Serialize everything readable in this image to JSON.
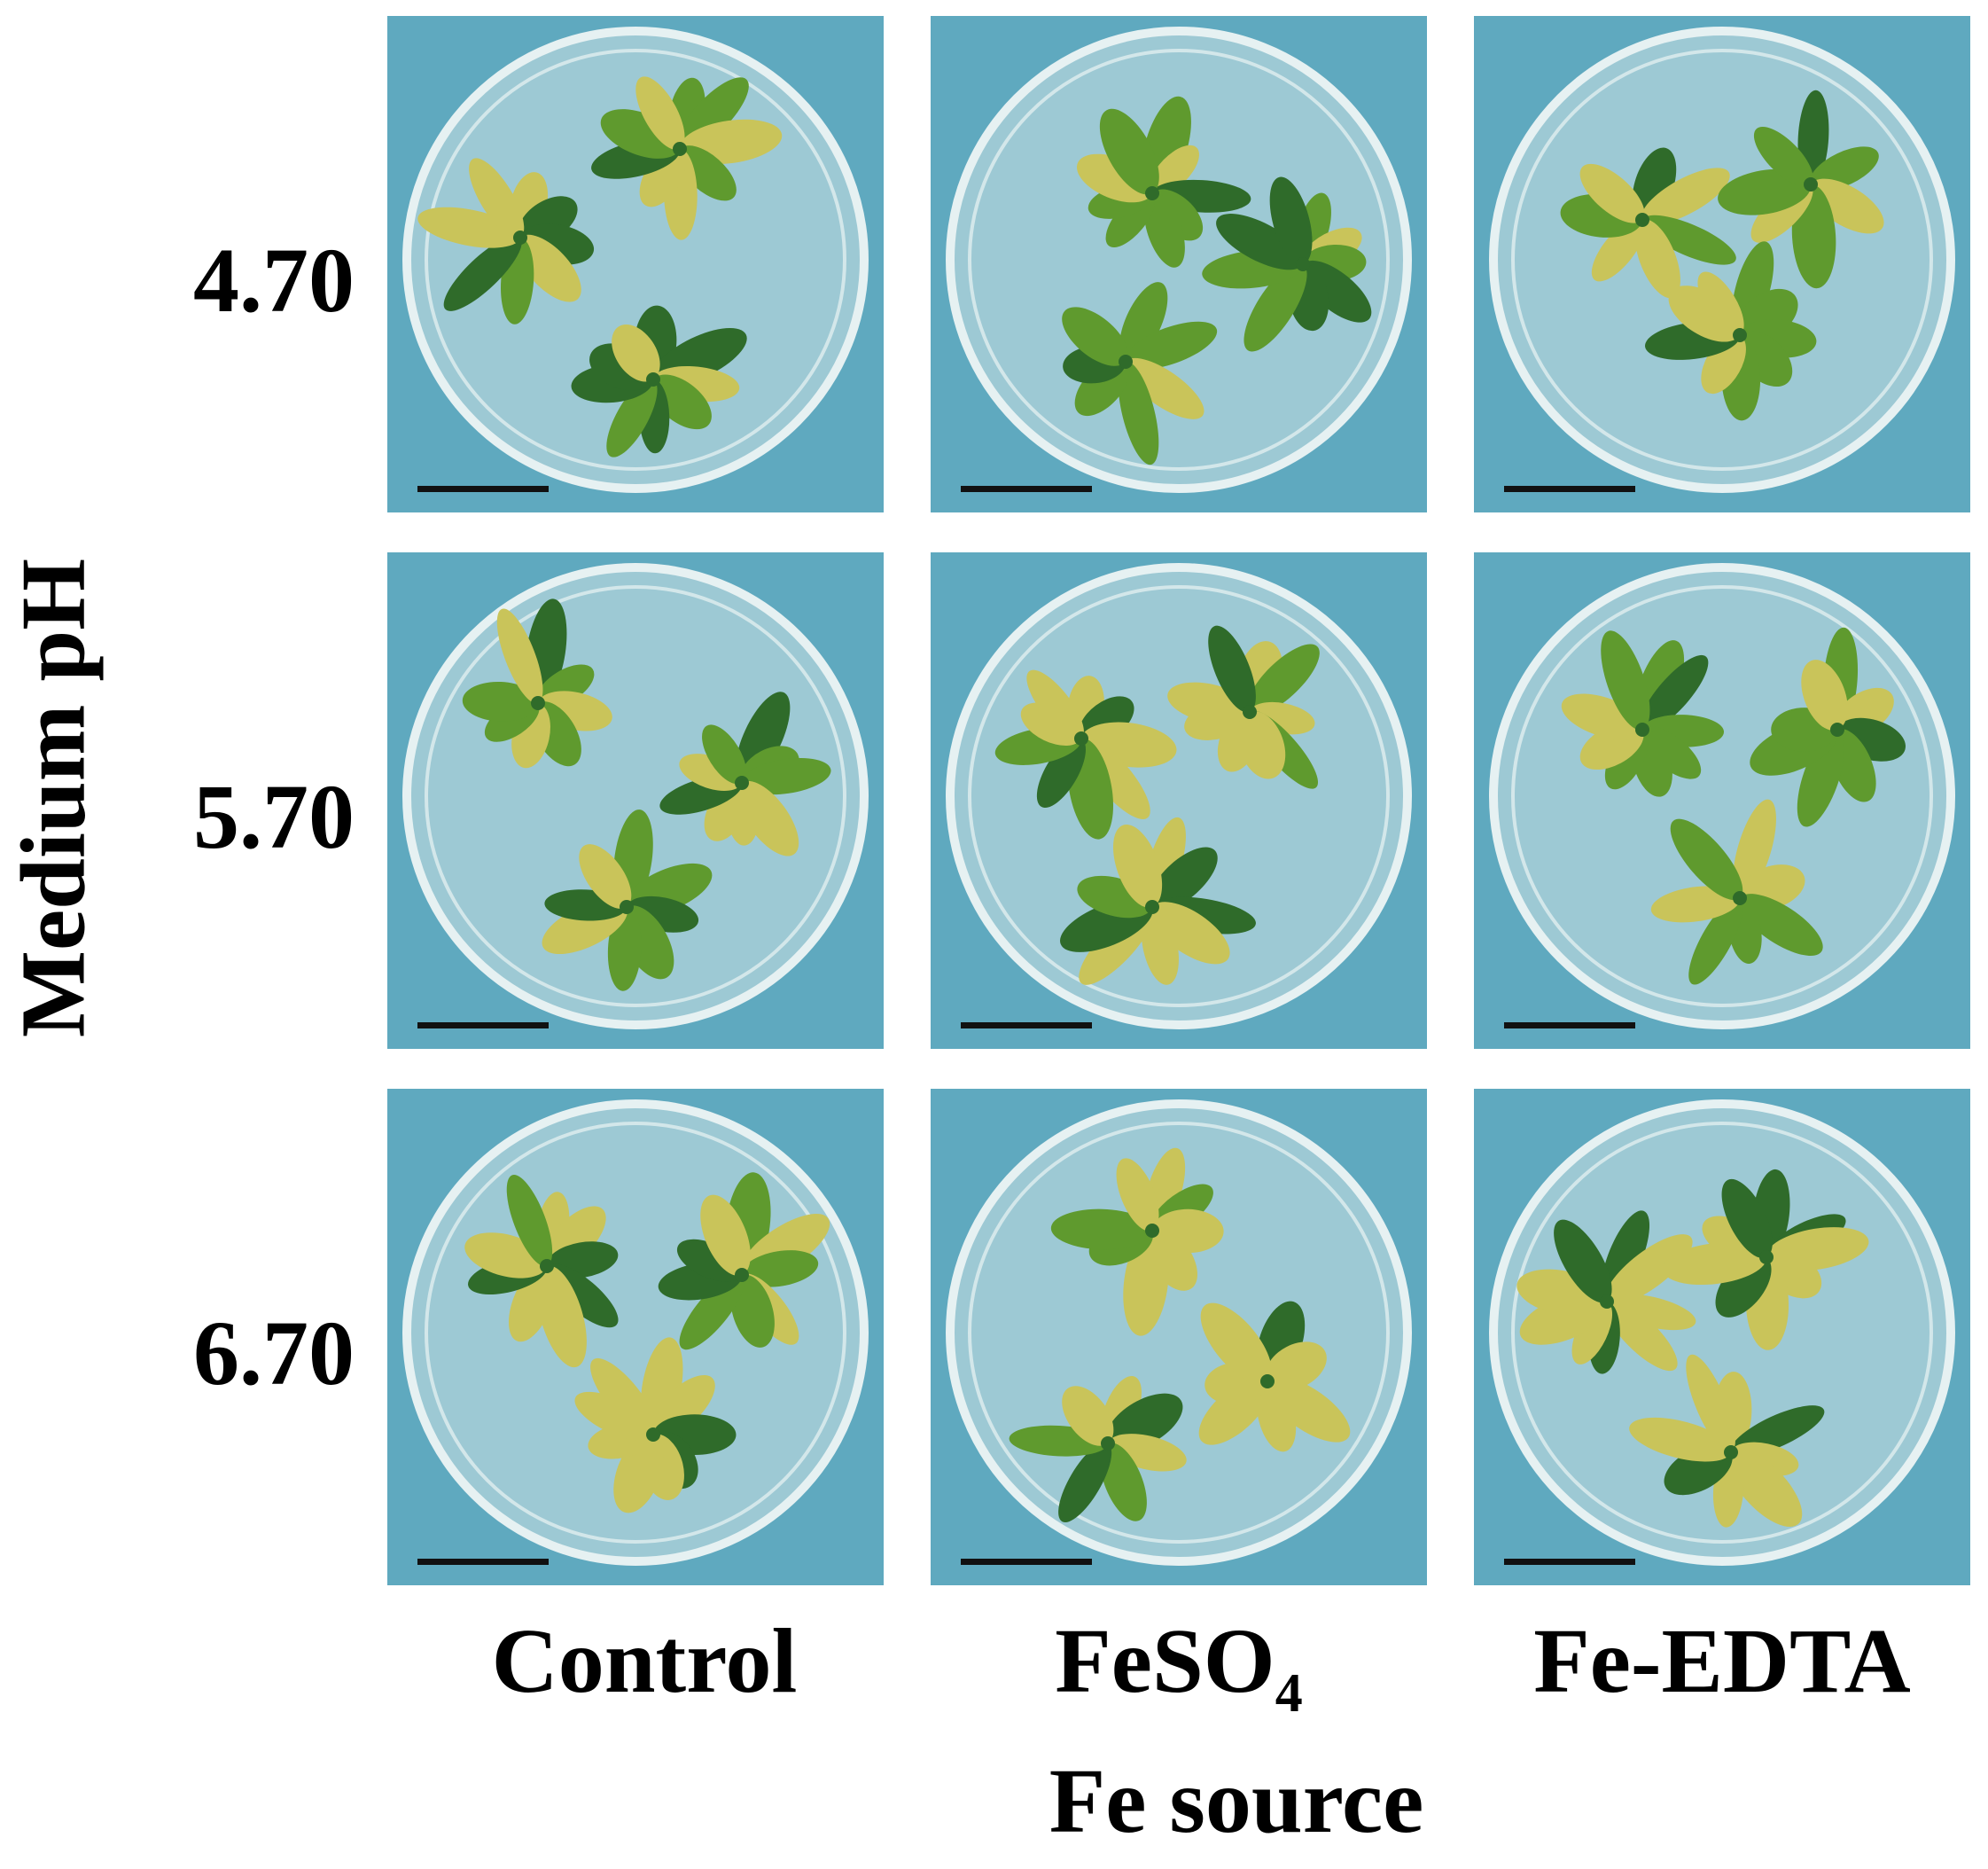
{
  "figure": {
    "y_axis_label": "Medium pH",
    "x_axis_label": "Fe source",
    "rows": [
      {
        "label": "4.70"
      },
      {
        "label": "5.70"
      },
      {
        "label": "6.70"
      }
    ],
    "columns": [
      {
        "label_main": "Control",
        "label_sub": ""
      },
      {
        "label_main": "FeSO",
        "label_sub": "4"
      },
      {
        "label_main": "Fe-EDTA",
        "label_sub": ""
      }
    ]
  },
  "colors": {
    "background": "#5fa9bf",
    "dish": "#cfe3e6",
    "dark_leaf": "#2f6b2a",
    "green_leaf": "#5f9a2e",
    "yellow_leaf": "#c9c45a",
    "scale_bar": "#111111"
  }
}
